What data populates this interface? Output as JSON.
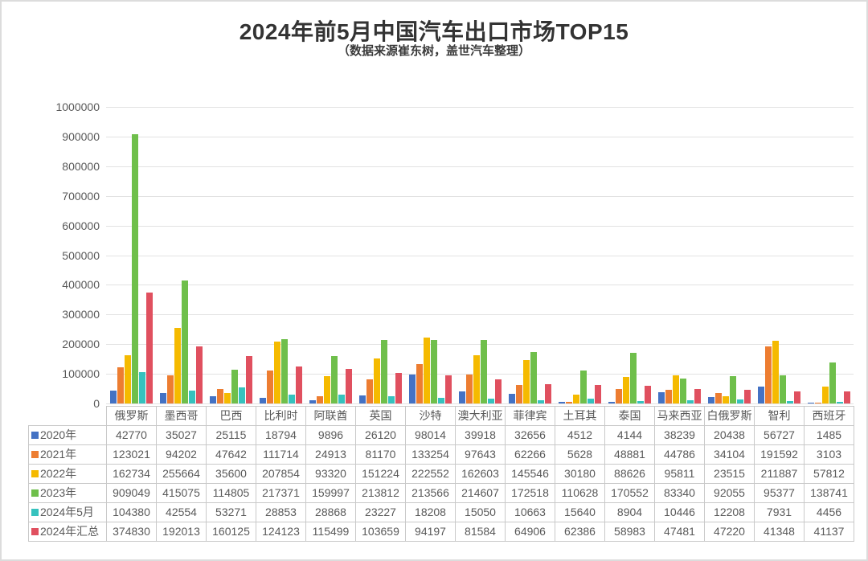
{
  "title": "2024年前5月中国汽车出口市场TOP15",
  "subtitle": "（数据来源崔东树，盖世汽车整理）",
  "chart_data": {
    "type": "bar",
    "title": "2024年前5月中国汽车出口市场TOP15",
    "subtitle": "（数据来源崔东树，盖世汽车整理）",
    "xlabel": "",
    "ylabel": "",
    "ylim": [
      0,
      1000000
    ],
    "y_tick_step": 100000,
    "grid": true,
    "legend_position": "table-left",
    "gridline_color": "#e2e2e2",
    "text_color": "#595959",
    "categories": [
      "俄罗斯",
      "墨西哥",
      "巴西",
      "比利时",
      "阿联酋",
      "英国",
      "沙特",
      "澳大利亚",
      "菲律宾",
      "土耳其",
      "泰国",
      "马来西亚",
      "白俄罗斯",
      "智利",
      "西班牙"
    ],
    "series": [
      {
        "name": "2020年",
        "color": "#4472C4",
        "values": [
          42770,
          35027,
          25115,
          18794,
          9896,
          26120,
          98014,
          39918,
          32656,
          4512,
          4144,
          38239,
          20438,
          56727,
          1485
        ]
      },
      {
        "name": "2021年",
        "color": "#ED7D31",
        "values": [
          123021,
          94202,
          47642,
          111714,
          24913,
          81170,
          133254,
          97643,
          62266,
          5628,
          48881,
          44786,
          34104,
          191592,
          3103
        ]
      },
      {
        "name": "2022年",
        "color": "#F5BA00",
        "values": [
          162734,
          255664,
          35600,
          207854,
          93320,
          151224,
          222552,
          162603,
          145546,
          30180,
          88626,
          95811,
          23515,
          211887,
          57812
        ]
      },
      {
        "name": "2023年",
        "color": "#6FBF4B",
        "values": [
          909049,
          415075,
          114805,
          217371,
          159997,
          213812,
          213566,
          214607,
          172518,
          110628,
          170552,
          83340,
          92055,
          95377,
          138741
        ]
      },
      {
        "name": "2024年5月",
        "color": "#36C2BE",
        "values": [
          104380,
          42554,
          53271,
          28853,
          28868,
          23227,
          18208,
          15050,
          10663,
          15640,
          8904,
          10446,
          12208,
          7931,
          4456
        ]
      },
      {
        "name": "2024年汇总",
        "color": "#E0505F",
        "values": [
          374830,
          192013,
          160125,
          124123,
          115499,
          103659,
          94197,
          81584,
          64906,
          62386,
          58983,
          47481,
          47220,
          41348,
          41137
        ]
      }
    ]
  }
}
